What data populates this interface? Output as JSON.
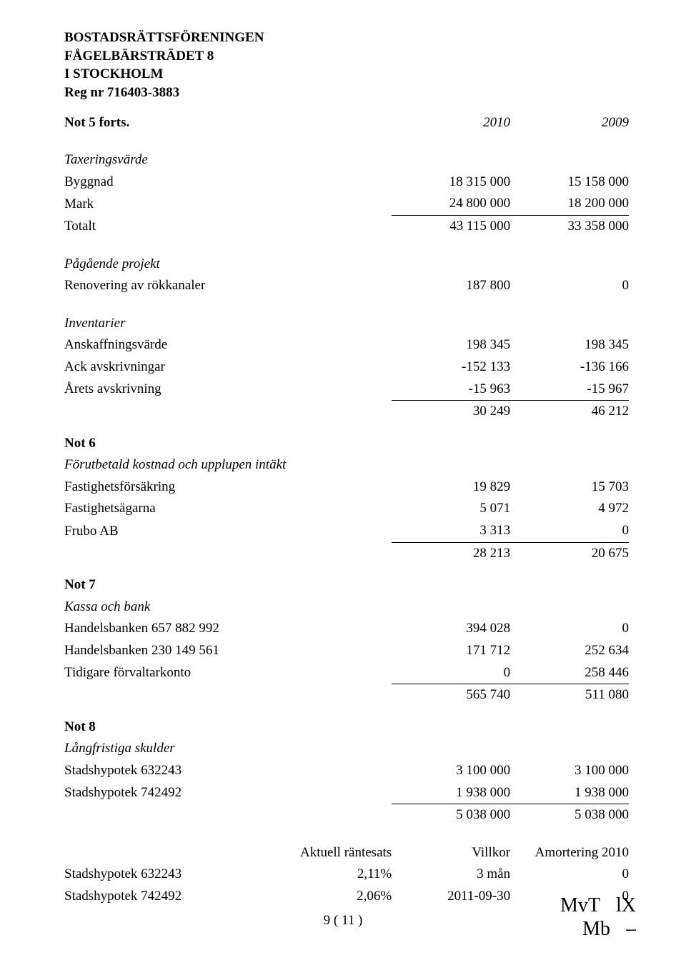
{
  "header": {
    "line1": "BOSTADSRÄTTSFÖRENINGEN",
    "line2": "FÅGELBÄRSTRÄDET 8",
    "line3": "I STOCKHOLM",
    "line4": "Reg nr 716403-3883"
  },
  "years_header": {
    "title": "Not 5 forts.",
    "y2010": "2010",
    "y2009": "2009"
  },
  "taxeringsvarde": {
    "heading": "Taxeringsvärde",
    "rows": [
      {
        "label": "Byggnad",
        "v2010": "18 315 000",
        "v2009": "15 158 000"
      },
      {
        "label": "Mark",
        "v2010": "24 800 000",
        "v2009": "18 200 000"
      }
    ],
    "total": {
      "label": "Totalt",
      "v2010": "43 115 000",
      "v2009": "33 358 000"
    }
  },
  "pagaende": {
    "heading": "Pågående projekt",
    "row": {
      "label": "Renovering av rökkanaler",
      "v2010": "187 800",
      "v2009": "0"
    }
  },
  "inventarier": {
    "heading": "Inventarier",
    "rows": [
      {
        "label": "Anskaffningsvärde",
        "v2010": "198 345",
        "v2009": "198 345"
      },
      {
        "label": "Ack avskrivningar",
        "v2010": "-152 133",
        "v2009": "-136 166"
      },
      {
        "label": "Årets avskrivning",
        "v2010": "-15 963",
        "v2009": "-15 967"
      }
    ],
    "total": {
      "v2010": "30 249",
      "v2009": "46 212"
    }
  },
  "not6": {
    "title": "Not 6",
    "subtitle": "Förutbetald kostnad och upplupen intäkt",
    "rows": [
      {
        "label": "Fastighetsförsäkring",
        "v2010": "19 829",
        "v2009": "15 703"
      },
      {
        "label": "Fastighetsägarna",
        "v2010": "5 071",
        "v2009": "4 972"
      },
      {
        "label": "Frubo AB",
        "v2010": "3 313",
        "v2009": "0"
      }
    ],
    "total": {
      "v2010": "28 213",
      "v2009": "20 675"
    }
  },
  "not7": {
    "title": "Not 7",
    "subtitle": "Kassa och bank",
    "rows": [
      {
        "label": "Handelsbanken 657 882 992",
        "v2010": "394 028",
        "v2009": "0"
      },
      {
        "label": "Handelsbanken 230 149 561",
        "v2010": "171 712",
        "v2009": "252 634"
      },
      {
        "label": "Tidigare förvaltarkonto",
        "v2010": "0",
        "v2009": "258 446"
      }
    ],
    "total": {
      "v2010": "565 740",
      "v2009": "511 080"
    }
  },
  "not8": {
    "title": "Not 8",
    "subtitle": "Långfristiga skulder",
    "rows": [
      {
        "label": "Stadshypotek 632243",
        "v2010": "3 100 000",
        "v2009": "3 100 000"
      },
      {
        "label": "Stadshypotek 742492",
        "v2010": "1 938 000",
        "v2009": "1 938 000"
      }
    ],
    "total": {
      "v2010": "5 038 000",
      "v2009": "5 038 000"
    },
    "terms_header": {
      "c1": "Aktuell räntesats",
      "c2": "Villkor",
      "c3": "Amortering 2010"
    },
    "terms": [
      {
        "label": "Stadshypotek 632243",
        "rate": "2,11%",
        "term": "3 mån",
        "amort": "0"
      },
      {
        "label": "Stadshypotek 742492",
        "rate": "2,06%",
        "term": "2011-09-30",
        "amort": "0"
      }
    ]
  },
  "page_number": "9 ( 11 )",
  "signatures": {
    "s1": "MvT",
    "s2": "lX",
    "s3": "Mb",
    "s4": "⎯"
  }
}
